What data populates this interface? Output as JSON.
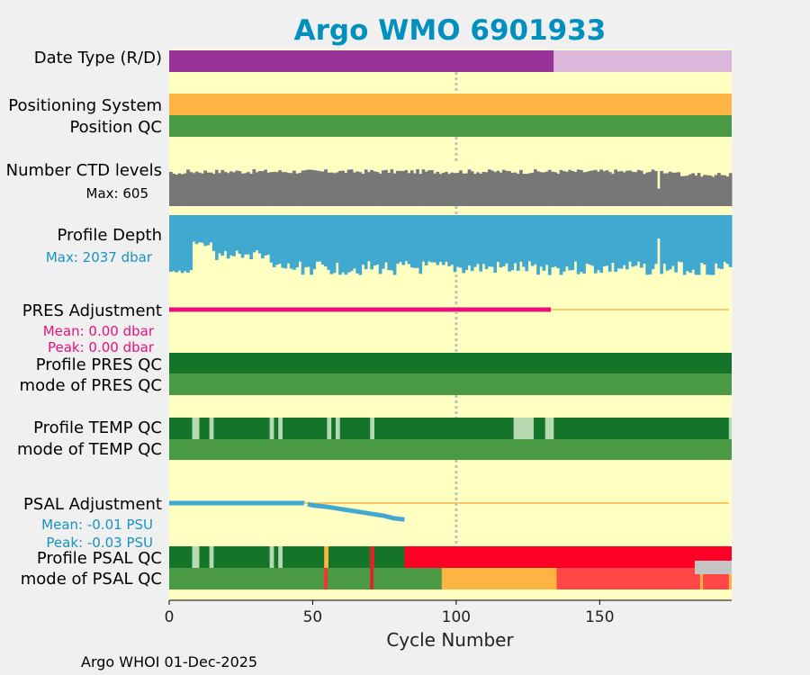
{
  "chart_data": {
    "type": "bar",
    "title": "Argo WMO 6901933",
    "xlabel": "Cycle Number",
    "xlim": [
      0,
      196
    ],
    "xticks": [
      0,
      50,
      100,
      150
    ],
    "xtick_labels": [
      "0",
      "50",
      "100",
      "150"
    ],
    "ref_cycle": 100,
    "footer": "Argo WHOI 01-Dec-2025",
    "rows": {
      "date_type": {
        "label": "Date Type (R/D)",
        "segments": [
          [
            0,
            134,
            "#993399"
          ],
          [
            134,
            196,
            "#dbb8db"
          ]
        ]
      },
      "positioning_system": {
        "label": "Positioning System",
        "segments": [
          [
            0,
            196,
            "#fdb443"
          ]
        ]
      },
      "position_qc": {
        "label": "Position QC",
        "segments": [
          [
            0,
            196,
            "#4a9a45"
          ]
        ]
      },
      "ctd_levels": {
        "label": "Number CTD levels",
        "max_label": "Max: 605",
        "max": 605
      },
      "profile_depth": {
        "label": "Profile Depth",
        "max_label": "Max: 2037 dbar",
        "max": 2037
      },
      "pres_adjustment": {
        "label": "PRES Adjustment",
        "mean_label": "Mean: 0.00 dbar",
        "peak_label": "Peak: 0.00 dbar",
        "adjusted_until": 133
      },
      "profile_pres_qc": {
        "label": "Profile PRES QC",
        "segments": [
          [
            0,
            196,
            "#14742a"
          ]
        ]
      },
      "mode_pres_qc": {
        "label": "mode of PRES QC",
        "segments": [
          [
            0,
            196,
            "#4a9a45"
          ]
        ]
      },
      "profile_temp_qc": {
        "label": "Profile TEMP QC",
        "segments": [
          [
            0,
            196,
            "#14742a"
          ],
          [
            8,
            10.5,
            "#b6d9b1"
          ],
          [
            14,
            15.5,
            "#b6d9b1"
          ],
          [
            35,
            36.5,
            "#b6d9b1"
          ],
          [
            38,
            39.5,
            "#b6d9b1"
          ],
          [
            55,
            56.5,
            "#b6d9b1"
          ],
          [
            58,
            59.5,
            "#b6d9b1"
          ],
          [
            70,
            71.5,
            "#b6d9b1"
          ],
          [
            120,
            127,
            "#b6d9b1"
          ],
          [
            131,
            134,
            "#b6d9b1"
          ],
          [
            195,
            196,
            "#b6d9b1"
          ]
        ]
      },
      "mode_temp_qc": {
        "label": "mode of TEMP QC",
        "segments": [
          [
            0,
            196,
            "#4a9a45"
          ]
        ]
      },
      "psal_adjustment": {
        "label": "PSAL Adjustment",
        "mean_label": "Mean: -0.01 PSU",
        "peak_label": "Peak: -0.03 PSU",
        "points": [
          [
            0,
            0
          ],
          [
            47,
            0
          ],
          [
            50,
            -0.003
          ],
          [
            55,
            -0.005
          ],
          [
            60,
            -0.008
          ],
          [
            65,
            -0.011
          ],
          [
            70,
            -0.014
          ],
          [
            75,
            -0.017
          ],
          [
            78,
            -0.02
          ],
          [
            82,
            -0.022
          ]
        ]
      },
      "profile_psal_qc": {
        "label": "Profile PSAL QC",
        "segments": [
          [
            0,
            196,
            "#14742a"
          ],
          [
            8,
            10.5,
            "#b6d9b1"
          ],
          [
            14,
            15.5,
            "#b6d9b1"
          ],
          [
            35,
            36.5,
            "#b6d9b1"
          ],
          [
            38,
            39.5,
            "#b6d9b1"
          ],
          [
            54,
            55.5,
            "#fdb443"
          ],
          [
            70,
            71.5,
            "#e2212d"
          ],
          [
            82,
            196,
            "#ff0026"
          ]
        ]
      },
      "mode_psal_qc": {
        "label": "mode of PSAL QC",
        "segments": [
          [
            0,
            95,
            "#4a9a45"
          ],
          [
            54,
            55.2,
            "#ff3030"
          ],
          [
            70,
            71.2,
            "#e2212d"
          ],
          [
            95,
            135,
            "#fdb443"
          ],
          [
            135,
            196,
            "#ff4747"
          ],
          [
            185,
            186,
            "#fdb443"
          ],
          [
            195,
            196,
            "#fdb443"
          ]
        ]
      },
      "psal_grey_marker": {
        "segment": [
          185,
          196,
          "#c4c4c4"
        ]
      }
    }
  },
  "colors": {
    "title": "#0090c0",
    "panel_bg": "#ffffc2",
    "ctd": "#777777",
    "depth": "#41a9cf",
    "pres_adj": "#e8107a",
    "psal_adj": "#41a9cf",
    "zero_line": "#fdb443",
    "ref_line": "#c0c0c0"
  }
}
